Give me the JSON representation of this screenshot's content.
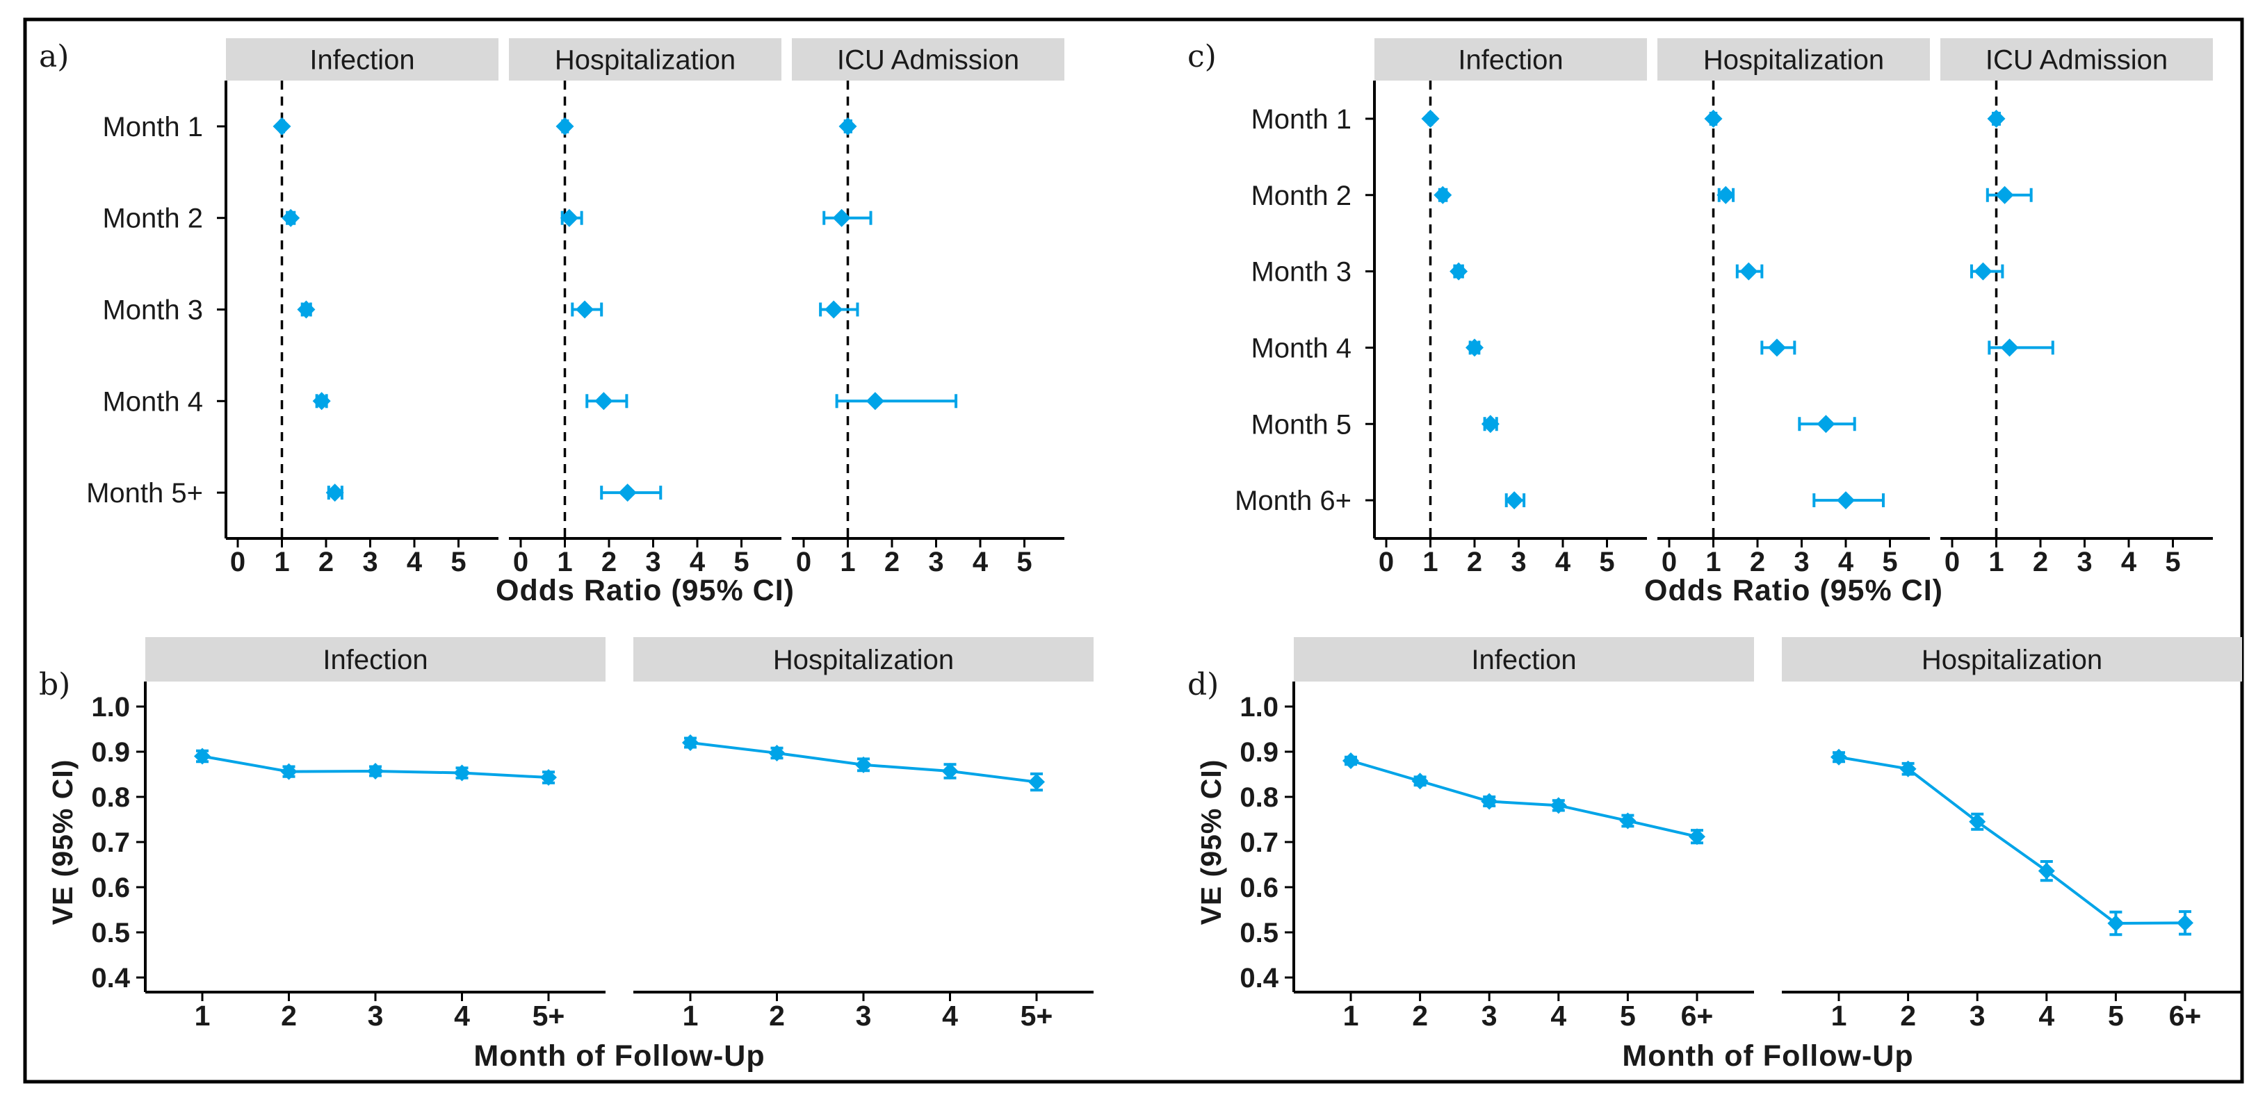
{
  "figure": {
    "background": "#ffffff",
    "border_color": "#000000",
    "panel_labels": [
      "a)",
      "b)",
      "c)",
      "d)"
    ]
  },
  "colors": {
    "accent": "#00A4E8",
    "strip_bg": "#D9D9D9",
    "axis": "#000000",
    "text": "#1A1A1A",
    "ref_line": "#000000"
  },
  "chart_data": [
    {
      "id": "a",
      "panel_label": "a)",
      "type": "scatter",
      "subtype": "forest-odds-ratio",
      "grid": false,
      "legend": "none",
      "facets": [
        "Infection",
        "Hospitalization",
        "ICU Admission"
      ],
      "categories": [
        "Month 1",
        "Month 2",
        "Month 3",
        "Month 4",
        "Month 5+"
      ],
      "xlabel": "Odds Ratio (95% CI)",
      "x_ticks": [
        "0",
        "1",
        "2",
        "3",
        "4",
        "5"
      ],
      "xlim": [
        -0.27,
        5.9
      ],
      "ref_line": 1,
      "series": [
        {
          "name": "Infection",
          "values": [
            {
              "v": 1.0,
              "lo": 0.97,
              "hi": 1.04
            },
            {
              "v": 1.2,
              "lo": 1.12,
              "hi": 1.28
            },
            {
              "v": 1.55,
              "lo": 1.46,
              "hi": 1.65
            },
            {
              "v": 1.9,
              "lo": 1.79,
              "hi": 2.01
            },
            {
              "v": 2.2,
              "lo": 2.06,
              "hi": 2.36
            }
          ]
        },
        {
          "name": "Hospitalization",
          "values": [
            {
              "v": 1.0,
              "lo": 0.95,
              "hi": 1.06
            },
            {
              "v": 1.1,
              "lo": 0.94,
              "hi": 1.38
            },
            {
              "v": 1.45,
              "lo": 1.17,
              "hi": 1.83
            },
            {
              "v": 1.88,
              "lo": 1.5,
              "hi": 2.4
            },
            {
              "v": 2.42,
              "lo": 1.83,
              "hi": 3.17
            }
          ]
        },
        {
          "name": "ICU Admission",
          "values": [
            {
              "v": 1.0,
              "lo": 0.94,
              "hi": 1.07
            },
            {
              "v": 0.86,
              "lo": 0.46,
              "hi": 1.52
            },
            {
              "v": 0.68,
              "lo": 0.38,
              "hi": 1.22
            },
            {
              "v": 1.62,
              "lo": 0.75,
              "hi": 3.45
            },
            null
          ]
        }
      ]
    },
    {
      "id": "b",
      "panel_label": "b)",
      "type": "line",
      "subtype": "vaccine-effectiveness",
      "grid": false,
      "legend": "none",
      "facets": [
        "Infection",
        "Hospitalization"
      ],
      "categories": [
        "1",
        "2",
        "3",
        "4",
        "5+"
      ],
      "xlabel": "Month of Follow-Up",
      "ylabel": "VE (95% CI)",
      "y_ticks": [
        "1.0",
        "0.9",
        "0.8",
        "0.7",
        "0.6",
        "0.5",
        "0.4"
      ],
      "ylim": [
        0.4,
        1.0
      ],
      "series": [
        {
          "name": "Infection",
          "values": [
            {
              "v": 0.89,
              "lo": 0.878,
              "hi": 0.902
            },
            {
              "v": 0.856,
              "lo": 0.845,
              "hi": 0.867
            },
            {
              "v": 0.857,
              "lo": 0.847,
              "hi": 0.867
            },
            {
              "v": 0.853,
              "lo": 0.842,
              "hi": 0.864
            },
            {
              "v": 0.843,
              "lo": 0.831,
              "hi": 0.855
            }
          ]
        },
        {
          "name": "Hospitalization",
          "values": [
            {
              "v": 0.92,
              "lo": 0.91,
              "hi": 0.93
            },
            {
              "v": 0.897,
              "lo": 0.886,
              "hi": 0.908
            },
            {
              "v": 0.871,
              "lo": 0.858,
              "hi": 0.884
            },
            {
              "v": 0.857,
              "lo": 0.842,
              "hi": 0.872
            },
            {
              "v": 0.833,
              "lo": 0.815,
              "hi": 0.851
            }
          ]
        }
      ]
    },
    {
      "id": "c",
      "panel_label": "c)",
      "type": "scatter",
      "subtype": "forest-odds-ratio",
      "grid": false,
      "legend": "none",
      "facets": [
        "Infection",
        "Hospitalization",
        "ICU Admission"
      ],
      "categories": [
        "Month 1",
        "Month 2",
        "Month 3",
        "Month 4",
        "Month 5",
        "Month 6+"
      ],
      "xlabel": "Odds Ratio (95% CI)",
      "x_ticks": [
        "0",
        "1",
        "2",
        "3",
        "4",
        "5"
      ],
      "xlim": [
        -0.27,
        5.9
      ],
      "ref_line": 1,
      "series": [
        {
          "name": "Infection",
          "values": [
            {
              "v": 1.0,
              "lo": 0.97,
              "hi": 1.03
            },
            {
              "v": 1.28,
              "lo": 1.21,
              "hi": 1.36
            },
            {
              "v": 1.64,
              "lo": 1.55,
              "hi": 1.73
            },
            {
              "v": 2.0,
              "lo": 1.9,
              "hi": 2.1
            },
            {
              "v": 2.36,
              "lo": 2.23,
              "hi": 2.5
            },
            {
              "v": 2.9,
              "lo": 2.72,
              "hi": 3.12
            }
          ]
        },
        {
          "name": "Hospitalization",
          "values": [
            {
              "v": 1.0,
              "lo": 0.94,
              "hi": 1.06
            },
            {
              "v": 1.28,
              "lo": 1.13,
              "hi": 1.45
            },
            {
              "v": 1.8,
              "lo": 1.54,
              "hi": 2.1
            },
            {
              "v": 2.44,
              "lo": 2.1,
              "hi": 2.84
            },
            {
              "v": 3.55,
              "lo": 2.95,
              "hi": 4.2
            },
            {
              "v": 4.0,
              "lo": 3.28,
              "hi": 4.85
            }
          ]
        },
        {
          "name": "ICU Admission",
          "values": [
            {
              "v": 1.0,
              "lo": 0.93,
              "hi": 1.07
            },
            {
              "v": 1.19,
              "lo": 0.8,
              "hi": 1.79
            },
            {
              "v": 0.7,
              "lo": 0.44,
              "hi": 1.14
            },
            {
              "v": 1.3,
              "lo": 0.84,
              "hi": 2.28
            },
            null,
            null
          ]
        }
      ]
    },
    {
      "id": "d",
      "panel_label": "d)",
      "type": "line",
      "subtype": "vaccine-effectiveness",
      "grid": false,
      "legend": "none",
      "facets": [
        "Infection",
        "Hospitalization"
      ],
      "categories": [
        "1",
        "2",
        "3",
        "4",
        "5",
        "6+"
      ],
      "xlabel": "Month of Follow-Up",
      "ylabel": "VE (95% CI)",
      "y_ticks": [
        "1.0",
        "0.9",
        "0.8",
        "0.7",
        "0.6",
        "0.5",
        "0.4"
      ],
      "ylim": [
        0.4,
        1.0
      ],
      "series": [
        {
          "name": "Infection",
          "values": [
            {
              "v": 0.88,
              "lo": 0.872,
              "hi": 0.888
            },
            {
              "v": 0.835,
              "lo": 0.826,
              "hi": 0.844
            },
            {
              "v": 0.79,
              "lo": 0.78,
              "hi": 0.8
            },
            {
              "v": 0.781,
              "lo": 0.77,
              "hi": 0.792
            },
            {
              "v": 0.747,
              "lo": 0.735,
              "hi": 0.759
            },
            {
              "v": 0.712,
              "lo": 0.698,
              "hi": 0.726
            }
          ]
        },
        {
          "name": "Hospitalization",
          "values": [
            {
              "v": 0.888,
              "lo": 0.878,
              "hi": 0.898
            },
            {
              "v": 0.862,
              "lo": 0.85,
              "hi": 0.874
            },
            {
              "v": 0.745,
              "lo": 0.728,
              "hi": 0.762
            },
            {
              "v": 0.636,
              "lo": 0.615,
              "hi": 0.657
            },
            {
              "v": 0.52,
              "lo": 0.495,
              "hi": 0.545
            },
            {
              "v": 0.521,
              "lo": 0.496,
              "hi": 0.546
            }
          ]
        }
      ]
    }
  ]
}
